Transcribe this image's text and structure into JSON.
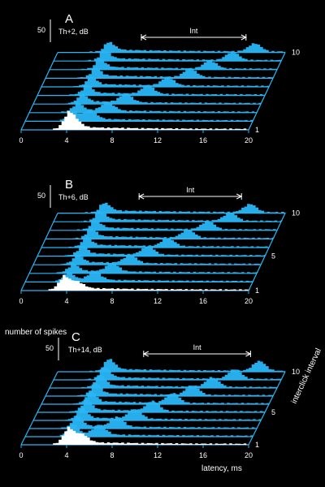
{
  "figure": {
    "colors": {
      "background": "#000000",
      "axes": "#29b6f6",
      "fill": "#29b6f6",
      "first_trace": "#ffffff",
      "text": "#ffffff"
    },
    "ylabel": "number of spikes",
    "xlabel": "latency, ms",
    "zlabel": "interclick interval",
    "scale_bar_label": "50",
    "interval_label": "Int"
  },
  "chart_data": [
    {
      "type": "area",
      "panel": "A",
      "condition": "Th+2, dB",
      "x_ticks": [
        "0",
        "4",
        "8",
        "12",
        "16",
        "20"
      ],
      "xlim": [
        0,
        20
      ],
      "z_ticks": [
        "1",
        "10"
      ],
      "traces": 10,
      "interval_ms": [
        8,
        17.2
      ],
      "first_peak_ms": 4.0,
      "second_peak_ms_by_trace": [
        4.6,
        5.6,
        6.8,
        8.0,
        9.6,
        11.0,
        12.6,
        14.0,
        15.6,
        17.2
      ]
    },
    {
      "type": "area",
      "panel": "B",
      "condition": "Th+6, dB",
      "x_ticks": [
        "0",
        "4",
        "8",
        "12",
        "16",
        "20"
      ],
      "xlim": [
        0,
        20
      ],
      "z_ticks": [
        "1",
        "5",
        "10"
      ],
      "traces": 10,
      "interval_ms": [
        7.8,
        16.8
      ],
      "first_peak_ms": 3.6,
      "second_peak_ms_by_trace": [
        4.8,
        6.0,
        7.2,
        8.4,
        9.6,
        11.0,
        12.4,
        13.8,
        15.4,
        16.8
      ]
    },
    {
      "type": "area",
      "panel": "C",
      "condition": "Th+14, dB",
      "x_ticks": [
        "0",
        "4",
        "8",
        "12",
        "16",
        "20"
      ],
      "xlim": [
        0,
        20
      ],
      "z_ticks": [
        "1",
        "5",
        "10"
      ],
      "traces": 10,
      "interval_ms": [
        8.2,
        17.6
      ],
      "first_peak_ms": 4.0,
      "second_peak_ms_by_trace": [
        5.2,
        6.4,
        7.6,
        8.8,
        10.0,
        11.4,
        12.8,
        14.2,
        15.8,
        17.6
      ]
    }
  ]
}
